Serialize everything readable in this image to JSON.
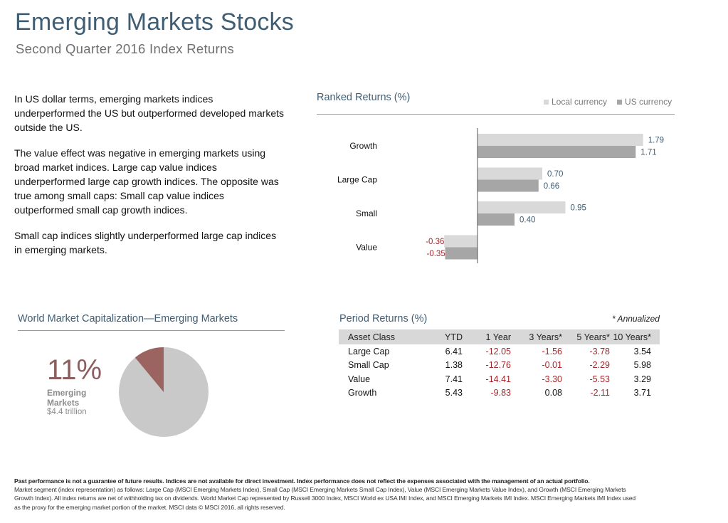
{
  "header": {
    "title": "Emerging Markets Stocks",
    "subtitle": "Second Quarter 2016 Index Returns"
  },
  "commentary": {
    "paragraphs": [
      "In US dollar terms, emerging markets indices underperformed the US but outperformed developed markets outside the US.",
      "The value effect was negative in emerging markets using broad market indices. Large cap value indices underperformed large cap growth indices. The opposite was true among small caps: Small cap value indices outperformed small cap growth indices.",
      "Small cap indices slightly underperformed  large cap indices in emerging markets."
    ]
  },
  "ranked_returns": {
    "title": "Ranked Returns (%)",
    "legend": {
      "local_label": "Local currency",
      "us_label": "US currency",
      "local_color": "#d9d9d9",
      "us_color": "#a6a6a6"
    }
  },
  "chart_data": {
    "type": "bar",
    "orientation": "horizontal",
    "title": "Ranked Returns (%)",
    "categories": [
      "Growth",
      "Large Cap",
      "Small",
      "Value"
    ],
    "series": [
      {
        "name": "Local currency",
        "values": [
          1.79,
          0.7,
          0.95,
          -0.36
        ]
      },
      {
        "name": "US currency",
        "values": [
          1.71,
          0.66,
          0.4,
          -0.35
        ]
      }
    ],
    "value_labels": [
      [
        "1.79",
        "0.70",
        "0.95",
        "-0.36"
      ],
      [
        "1.71",
        "0.66",
        "0.40",
        "-0.35"
      ]
    ],
    "legend_position": "top-right",
    "colors": {
      "positive_label": "#3f5d73",
      "negative_label": "#a3262a"
    }
  },
  "period_returns": {
    "title": "Period Returns (%)",
    "note": "* Annualized",
    "columns": [
      "Asset Class",
      "YTD",
      "1 Year",
      "3 Years*",
      "5 Years*",
      "10 Years*"
    ],
    "rows": [
      [
        "Large Cap",
        "6.41",
        "-12.05",
        "-1.56",
        "-3.78",
        "3.54"
      ],
      [
        "Small Cap",
        "1.38",
        "-12.76",
        "-0.01",
        "-2.29",
        "5.98"
      ],
      [
        "Value",
        "7.41",
        "-14.41",
        "-3.30",
        "-5.53",
        "3.29"
      ],
      [
        "Growth",
        "5.43",
        "-9.83",
        "0.08",
        "-2.11",
        "3.71"
      ]
    ]
  },
  "world_market_cap": {
    "title": "World Market Capitalization—Emerging Markets",
    "percent_label": "11%",
    "segment_label": "Emerging Markets",
    "value_label": "$4.4 trillion",
    "share": 0.11,
    "slice_color": "#9b6461",
    "rest_color": "#c9c9c9"
  },
  "footnote": {
    "bold": "Past performance is not a guarantee of future results. Indices are not available for direct investment. Index performance does not reflect the expenses associated with the management of an actual portfolio.",
    "text": "Market segment (index representation) as follows: Large Cap (MSCI Emerging Markets Index), Small Cap (MSCI Emerging Markets Small Cap Index), Value (MSCI Emerging Markets Value Index), and Growth (MSCI Emerging Markets Growth Index). All index returns are net of withholding tax on dividends. World Market Cap represented by Russell 3000 Index, MSCI World ex USA IMI Index, and MSCI Emerging Markets IMI Index. MSCI Emerging Markets IMI Index used as the proxy for the emerging market portion of the market. MSCI data © MSCI 2016, all rights reserved."
  }
}
